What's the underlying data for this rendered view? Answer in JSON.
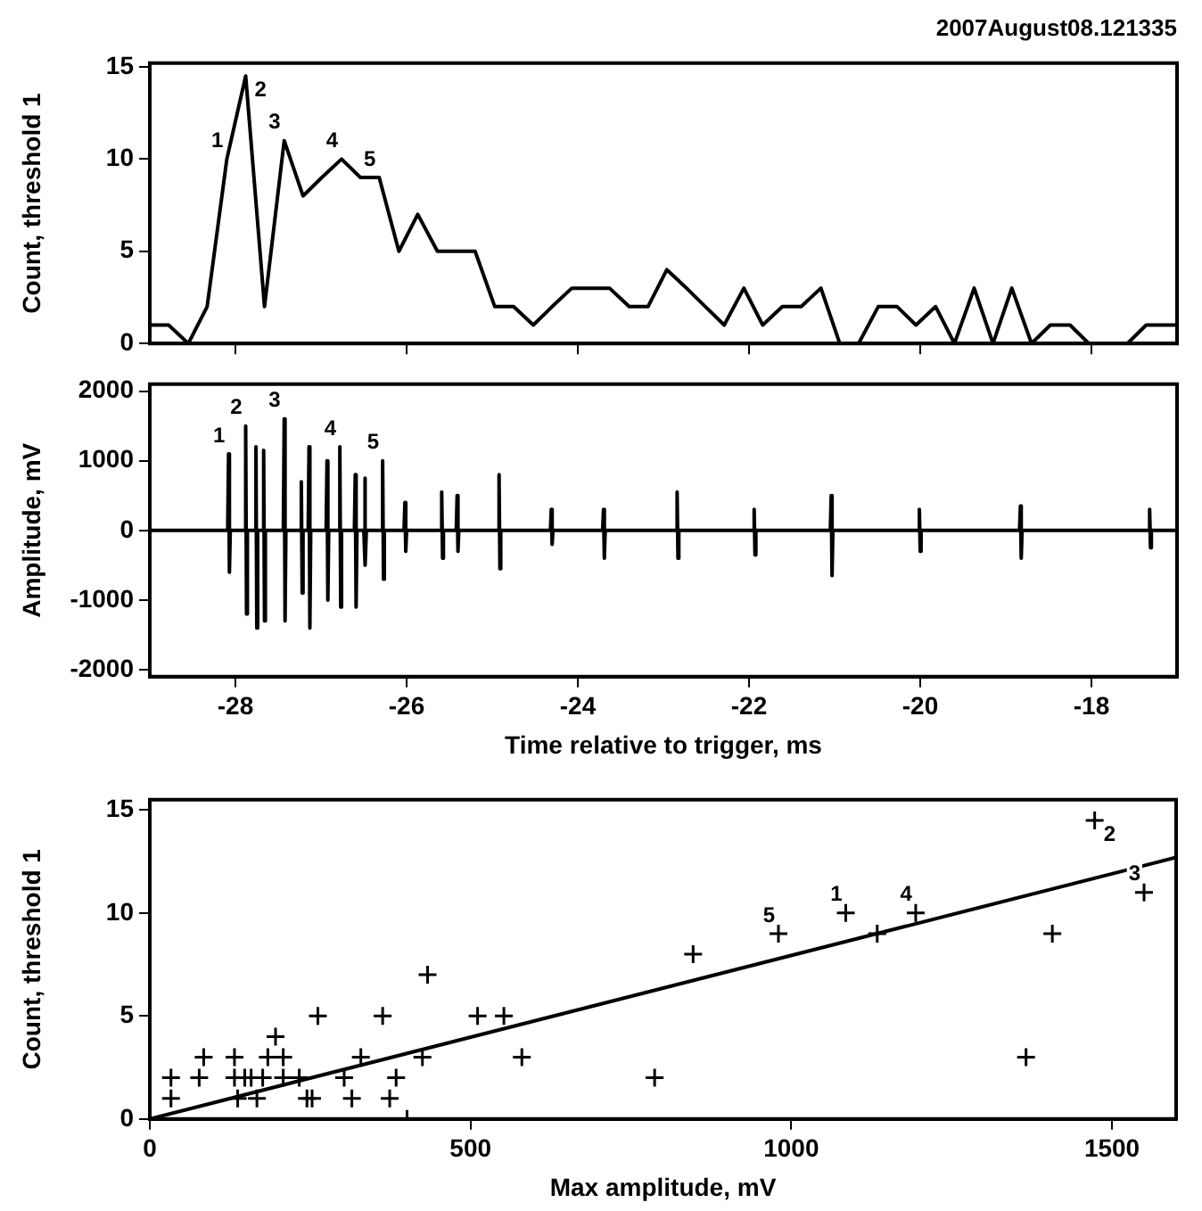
{
  "chart_data": [
    {
      "type": "line",
      "title": "2007August08.121335",
      "ylabel": "Count, threshold 1",
      "marker": "none",
      "line_style": "solid",
      "tick_labels": "y",
      "grid": false,
      "series": [
        {
          "color": "#000000",
          "x": [
            -29.0,
            -28.78,
            -28.55,
            -28.33,
            -28.1,
            -27.88,
            -27.66,
            -27.43,
            -27.21,
            -26.99,
            -26.76,
            -26.54,
            -26.32,
            -26.09,
            -25.87,
            -25.64,
            -25.42,
            -25.2,
            -24.97,
            -24.75,
            -24.52,
            -24.3,
            -24.07,
            -23.85,
            -23.63,
            -23.4,
            -23.18,
            -22.96,
            -22.73,
            -22.51,
            -22.29,
            -22.06,
            -21.84,
            -21.61,
            -21.39,
            -21.16,
            -20.94,
            -20.72,
            -20.49,
            -20.27,
            -20.05,
            -19.82,
            -19.6,
            -19.37,
            -19.15,
            -18.93,
            -18.7,
            -18.48,
            -18.25,
            -18.03,
            -17.81,
            -17.58,
            -17.36,
            -17.0
          ],
          "values": [
            1,
            1,
            0,
            2,
            10,
            14.5,
            2,
            11,
            8,
            9,
            10,
            9,
            9,
            5,
            7,
            5,
            5,
            5,
            2,
            2,
            1,
            2,
            3,
            3,
            3,
            2,
            2,
            4,
            3,
            2,
            1,
            3,
            1,
            2,
            2,
            3,
            0,
            0,
            2,
            2,
            1,
            2,
            0,
            3,
            0,
            3,
            0,
            1,
            1,
            0,
            0,
            0,
            1,
            1
          ]
        }
      ],
      "xlim": [
        -29,
        -17
      ],
      "xticks": [
        -28,
        -26,
        -24,
        -22,
        -20,
        -18
      ],
      "ylim": [
        0,
        15.2
      ],
      "yticks": [
        0,
        5,
        10,
        15
      ],
      "annotations": [
        {
          "text": "1",
          "x": -28.1,
          "y": 10
        },
        {
          "text": "2",
          "x": -27.88,
          "y": 14.5
        },
        {
          "text": "3",
          "x": -27.43,
          "y": 11
        },
        {
          "text": "4",
          "x": -26.76,
          "y": 10
        },
        {
          "text": "5",
          "x": -26.32,
          "y": 9
        }
      ]
    },
    {
      "type": "line",
      "xlabel": "Time relative to trigger, ms",
      "ylabel": "Amplitude, mV",
      "marker": "none",
      "line_style": "solid",
      "grid": false,
      "series": [
        {
          "color": "#000000",
          "x": [
            -29.0,
            -28.09,
            -28.08,
            -28.07,
            -28.06,
            -27.89,
            -27.88,
            -27.87,
            -27.86,
            -27.77,
            -27.76,
            -27.75,
            -27.74,
            -27.68,
            -27.67,
            -27.66,
            -27.65,
            -27.44,
            -27.43,
            -27.42,
            -27.41,
            -27.24,
            -27.23,
            -27.22,
            -27.21,
            -27.15,
            -27.14,
            -27.13,
            -27.12,
            -26.94,
            -26.93,
            -26.92,
            -26.91,
            -26.79,
            -26.78,
            -26.77,
            -26.76,
            -26.61,
            -26.6,
            -26.59,
            -26.58,
            -26.5,
            -26.49,
            -26.48,
            -26.47,
            -26.29,
            -26.28,
            -26.27,
            -26.26,
            -26.03,
            -26.02,
            -26.01,
            -26.0,
            -25.6,
            -25.59,
            -25.58,
            -25.57,
            -25.42,
            -25.41,
            -25.4,
            -25.39,
            -24.93,
            -24.92,
            -24.91,
            -24.9,
            -24.32,
            -24.31,
            -24.3,
            -24.29,
            -23.71,
            -23.7,
            -23.69,
            -23.68,
            -22.85,
            -22.84,
            -22.83,
            -22.82,
            -21.95,
            -21.94,
            -21.93,
            -21.92,
            -21.05,
            -21.04,
            -21.03,
            -21.02,
            -20.02,
            -20.01,
            -20.0,
            -19.99,
            -18.84,
            -18.83,
            -18.82,
            -18.81,
            -17.33,
            -17.32,
            -17.31,
            -17.3,
            -17.0
          ],
          "values": [
            0,
            0,
            1100,
            -600,
            0,
            0,
            1500,
            -1200,
            0,
            0,
            1200,
            -1400,
            0,
            0,
            1150,
            -1300,
            0,
            0,
            1600,
            -1300,
            0,
            0,
            700,
            -900,
            0,
            0,
            1200,
            -1400,
            0,
            0,
            1000,
            -1000,
            0,
            0,
            1200,
            -1100,
            0,
            0,
            800,
            -1100,
            0,
            0,
            750,
            -500,
            0,
            0,
            1000,
            -700,
            0,
            0,
            400,
            -300,
            0,
            0,
            550,
            -400,
            0,
            0,
            500,
            -300,
            0,
            0,
            800,
            -550,
            0,
            0,
            300,
            -200,
            0,
            0,
            300,
            -400,
            0,
            0,
            550,
            -400,
            0,
            0,
            300,
            -350,
            0,
            0,
            500,
            -650,
            0,
            0,
            300,
            -300,
            0,
            0,
            350,
            -400,
            0,
            0,
            300,
            -250,
            0,
            0
          ]
        }
      ],
      "xlim": [
        -29,
        -17
      ],
      "xticks": [
        -28,
        -26,
        -24,
        -22,
        -20,
        -18
      ],
      "ylim": [
        -2100,
        2100
      ],
      "yticks": [
        -2000,
        -1000,
        0,
        1000,
        2000
      ],
      "annotations": [
        {
          "text": "1",
          "x": -28.08,
          "y": 1100
        },
        {
          "text": "2",
          "x": -27.88,
          "y": 1500
        },
        {
          "text": "3",
          "x": -27.43,
          "y": 1600
        },
        {
          "text": "4",
          "x": -26.78,
          "y": 1200
        },
        {
          "text": "5",
          "x": -26.28,
          "y": 1000
        }
      ]
    },
    {
      "type": "scatter",
      "xlabel": "Max amplitude, mV",
      "ylabel": "Count, threshold 1",
      "marker": "cross",
      "grid": false,
      "series": [
        {
          "color": "#000000",
          "x": [
            33,
            33,
            77,
            84,
            132,
            132,
            137,
            148,
            158,
            167,
            176,
            184,
            196,
            208,
            208,
            233,
            245,
            253,
            262,
            303,
            315,
            329,
            363,
            374,
            384,
            401,
            425,
            433,
            511,
            552,
            580,
            787,
            847,
            980,
            1085,
            1134,
            1194,
            1366,
            1407,
            1473,
            1550
          ],
          "values": [
            1,
            2,
            2,
            3,
            3,
            2,
            1,
            2,
            2,
            1,
            2,
            3,
            4,
            3,
            2,
            2,
            1,
            1,
            5,
            2,
            1,
            3,
            5,
            1,
            2,
            0,
            3,
            7,
            5,
            5,
            3,
            2,
            8,
            9,
            10,
            9,
            10,
            3,
            9,
            14.5,
            11
          ]
        },
        {
          "type": "line",
          "color": "#000000",
          "marker": "none",
          "x": [
            0,
            1600
          ],
          "values": [
            0,
            12.7
          ]
        }
      ],
      "xlim": [
        0,
        1600
      ],
      "xticks": [
        0,
        500,
        1000,
        1500
      ],
      "ylim": [
        0,
        15.5
      ],
      "yticks": [
        0,
        5,
        10,
        15
      ],
      "annotations": [
        {
          "text": "1",
          "x": 1085,
          "y": 10
        },
        {
          "text": "2",
          "x": 1473,
          "y": 14.5
        },
        {
          "text": "3",
          "x": 1550,
          "y": 11
        },
        {
          "text": "4",
          "x": 1194,
          "y": 10
        },
        {
          "text": "5",
          "x": 980,
          "y": 9
        }
      ]
    }
  ]
}
